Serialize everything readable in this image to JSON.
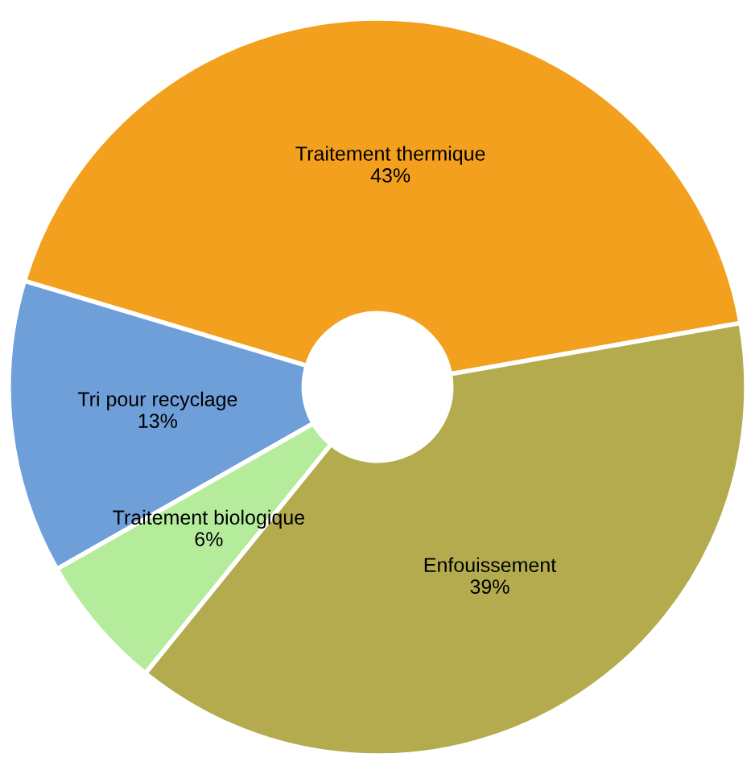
{
  "chart_data": {
    "type": "donut",
    "categories": [
      "Traitement thermique",
      "Tri pour recyclage",
      "Traitement biologique",
      "Enfouissement"
    ],
    "values": [
      43,
      13,
      6,
      39
    ],
    "colors": [
      "#f2a01e",
      "#6e9fd8",
      "#b4ec9c",
      "#b3ab4e"
    ],
    "value_labels": [
      "43%",
      "13%",
      "6%",
      "39%"
    ],
    "legend": false
  }
}
